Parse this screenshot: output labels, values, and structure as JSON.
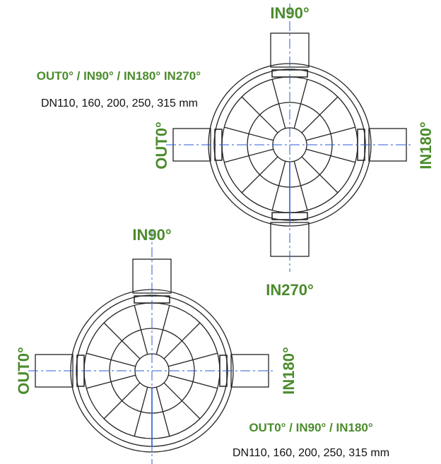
{
  "diagrams": [
    {
      "legend": {
        "ports": "OUT0° / IN90° / IN180° IN270°",
        "sizes": "DN110, 160, 200, 250, 315 mm"
      },
      "ports": {
        "top": "IN90°",
        "left": "OUT0°",
        "right": "IN180°",
        "bottom": "IN270°"
      }
    },
    {
      "legend": {
        "ports": "OUT0° / IN90° / IN180°",
        "sizes": "DN110, 160, 200, 250, 315 mm"
      },
      "ports": {
        "top": "IN90°",
        "left": "OUT0°",
        "right": "IN180°"
      }
    }
  ]
}
